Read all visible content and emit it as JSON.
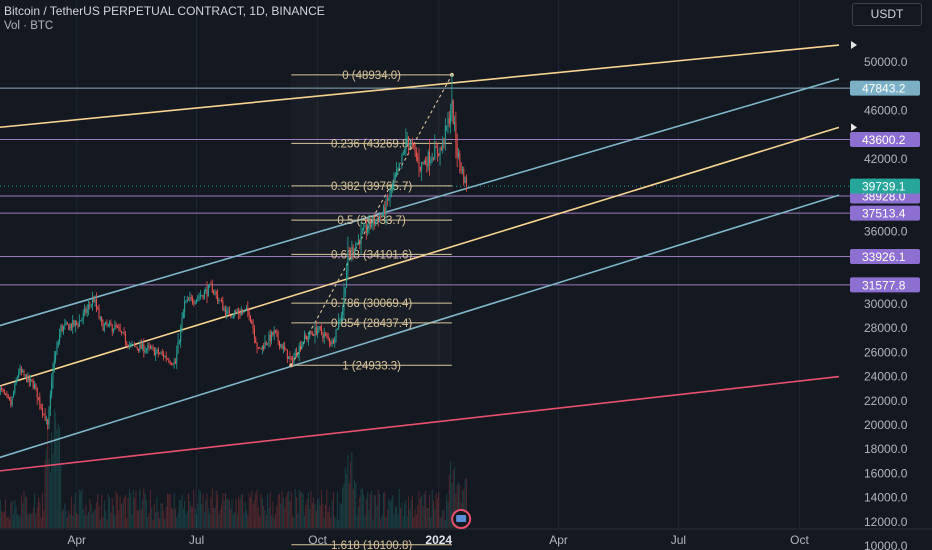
{
  "header": {
    "symbol_title": "Bitcoin / TetherUS PERPETUAL CONTRACT, 1D, BINANCE",
    "volume_label": "Vol · BTC",
    "currency_button": "USDT"
  },
  "colors": {
    "background": "#141821",
    "fib_line": "#d9c59a",
    "yellow_channel": "#f7d48f",
    "blue_channel": "#7fb6c8",
    "red_line": "#e8506e",
    "horizontal_level": "#b48bd9",
    "horizontal_blue": "#9cc3d6",
    "current_price": "#26a69a",
    "candle_up": "#26a69a",
    "candle_down": "#ef5350",
    "price_tag_purple": "#8d6fd1"
  },
  "chart_data": {
    "type": "candlestick",
    "title": "Bitcoin / TetherUS PERPETUAL CONTRACT, 1D, BINANCE",
    "y_axis": {
      "ylim": [
        10000,
        51000
      ],
      "ticks": [
        10000,
        12000,
        14000,
        16000,
        18000,
        20000,
        22000,
        24000,
        26000,
        28000,
        30000,
        32000,
        34000,
        36000,
        38000,
        40000,
        42000,
        44000,
        46000,
        48000,
        50000
      ],
      "tick_labels": [
        "10000.0",
        "12000.0",
        "14000.0",
        "16000.0",
        "18000.0",
        "20000.0",
        "22000.0",
        "24000.0",
        "26000.0",
        "28000.0",
        "30000.0",
        "32000.0",
        "34000.0",
        "36000.0",
        "38000.0",
        "40000.0",
        "42000.0",
        "44000.0",
        "46000.0",
        "48000.0",
        "50000.0"
      ],
      "hidden_ticks": [
        32000,
        38000,
        44000,
        48000
      ]
    },
    "x_axis": {
      "range": [
        "2023-02-01",
        "2024-10-31"
      ],
      "ticks": [
        {
          "date": "2023-04-01",
          "label": "Apr",
          "bold": false
        },
        {
          "date": "2023-07-01",
          "label": "Jul",
          "bold": false
        },
        {
          "date": "2023-10-01",
          "label": "Oct",
          "bold": false
        },
        {
          "date": "2024-01-01",
          "label": "2024",
          "bold": true
        },
        {
          "date": "2024-04-01",
          "label": "Apr",
          "bold": false
        },
        {
          "date": "2024-07-01",
          "label": "Jul",
          "bold": false
        },
        {
          "date": "2024-10-01",
          "label": "Oct",
          "bold": false
        }
      ]
    },
    "current_price": 39739.1,
    "current_price_label": "39739.1",
    "price_path": [
      {
        "date": "2023-02-01",
        "price": 23100
      },
      {
        "date": "2023-02-10",
        "price": 21700
      },
      {
        "date": "2023-02-16",
        "price": 24500
      },
      {
        "date": "2023-02-28",
        "price": 23200
      },
      {
        "date": "2023-03-10",
        "price": 19900
      },
      {
        "date": "2023-03-14",
        "price": 24700
      },
      {
        "date": "2023-03-20",
        "price": 28000
      },
      {
        "date": "2023-04-02",
        "price": 28400
      },
      {
        "date": "2023-04-14",
        "price": 30400
      },
      {
        "date": "2023-04-20",
        "price": 28200
      },
      {
        "date": "2023-05-01",
        "price": 28000
      },
      {
        "date": "2023-05-12",
        "price": 26500
      },
      {
        "date": "2023-05-25",
        "price": 26300
      },
      {
        "date": "2023-06-05",
        "price": 25800
      },
      {
        "date": "2023-06-15",
        "price": 25100
      },
      {
        "date": "2023-06-22",
        "price": 30000
      },
      {
        "date": "2023-07-13",
        "price": 31300
      },
      {
        "date": "2023-07-24",
        "price": 29200
      },
      {
        "date": "2023-08-10",
        "price": 29400
      },
      {
        "date": "2023-08-17",
        "price": 26100
      },
      {
        "date": "2023-08-29",
        "price": 27600
      },
      {
        "date": "2023-09-11",
        "price": 25200
      },
      {
        "date": "2023-09-20",
        "price": 27000
      },
      {
        "date": "2023-10-01",
        "price": 27900
      },
      {
        "date": "2023-10-12",
        "price": 26800
      },
      {
        "date": "2023-10-20",
        "price": 29600
      },
      {
        "date": "2023-10-24",
        "price": 34000
      },
      {
        "date": "2023-11-09",
        "price": 36500
      },
      {
        "date": "2023-11-20",
        "price": 37500
      },
      {
        "date": "2023-12-04",
        "price": 41900
      },
      {
        "date": "2023-12-08",
        "price": 43800
      },
      {
        "date": "2023-12-18",
        "price": 41400
      },
      {
        "date": "2023-12-28",
        "price": 42500
      },
      {
        "date": "2024-01-03",
        "price": 42800
      },
      {
        "date": "2024-01-11",
        "price": 46300
      },
      {
        "date": "2024-01-15",
        "price": 42500
      },
      {
        "date": "2024-01-22",
        "price": 39700
      }
    ],
    "fibonacci": {
      "start": {
        "date": "2023-09-11",
        "price": 24933.3
      },
      "end": {
        "date": "2024-01-11",
        "price": 48934.0
      },
      "levels": [
        {
          "ratio": "0",
          "price": 48934.0,
          "label": "0 (48934.0)"
        },
        {
          "ratio": "0.236",
          "price": 43269.8,
          "label": "0.236 (43269.8)"
        },
        {
          "ratio": "0.382",
          "price": 39765.7,
          "label": "0.382 (39765.7)"
        },
        {
          "ratio": "0.5",
          "price": 36933.7,
          "label": "0.5 (36933.7)"
        },
        {
          "ratio": "0.618",
          "price": 34101.6,
          "label": "0.618 (34101.6)"
        },
        {
          "ratio": "0.786",
          "price": 30069.4,
          "label": "0.786 (30069.4)"
        },
        {
          "ratio": "0.854",
          "price": 28437.4,
          "label": "0.854 (28437.4)"
        },
        {
          "ratio": "1",
          "price": 24933.3,
          "label": "1 (24933.3)"
        },
        {
          "ratio": "1.618",
          "price": 10100.8,
          "label": "1.618 (10100.8)"
        }
      ]
    },
    "horizontal_levels": [
      {
        "price": 47843.2,
        "label": "47843.2",
        "color": "#9cc3d6"
      },
      {
        "price": 43600.2,
        "label": "43600.2",
        "color": "#b48bd9"
      },
      {
        "price": 38928.0,
        "label": "38928.0",
        "color": "#b48bd9"
      },
      {
        "price": 37513.4,
        "label": "37513.4",
        "color": "#b48bd9"
      },
      {
        "price": 33926.1,
        "label": "33926.1",
        "color": "#b48bd9"
      },
      {
        "price": 31577.8,
        "label": "31577.8",
        "color": "#b48bd9"
      }
    ],
    "trend_lines": [
      {
        "name": "",
        "color": "#f7d48f",
        "p1": {
          "date": "2023-02-01",
          "price": 44600
        },
        "p2": {
          "date": "2024-10-31",
          "price": 51400
        }
      },
      {
        "name": "",
        "color": "#f7d48f",
        "p1": {
          "date": "2023-02-01",
          "price": 23200
        },
        "p2": {
          "date": "2024-10-31",
          "price": 44600
        }
      },
      {
        "name": "",
        "color": "#7fb6c8",
        "p1": {
          "date": "2023-02-01",
          "price": 28200
        },
        "p2": {
          "date": "2024-10-31",
          "price": 48600
        }
      },
      {
        "name": "",
        "color": "#7fb6c8",
        "p1": {
          "date": "2023-02-01",
          "price": 17300
        },
        "p2": {
          "date": "2024-10-31",
          "price": 39000
        }
      },
      {
        "name": "",
        "color": "#e8506e",
        "p1": {
          "date": "2023-02-01",
          "price": 16200
        },
        "p2": {
          "date": "2024-10-31",
          "price": 24000
        }
      }
    ]
  }
}
